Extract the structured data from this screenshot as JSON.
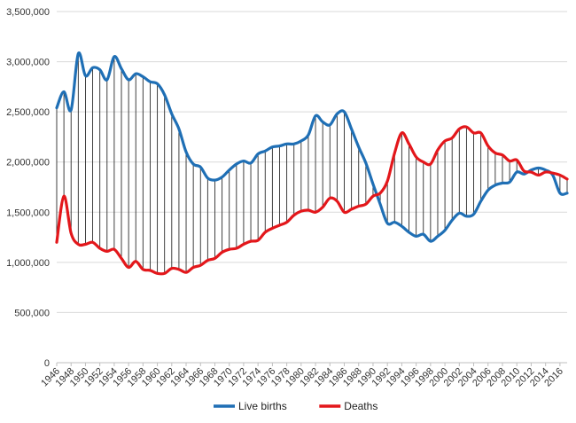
{
  "chart_data": {
    "type": "line",
    "title": "",
    "xlabel": "",
    "ylabel": "",
    "ylim": [
      0,
      3500000
    ],
    "y_ticks": [
      0,
      500000,
      1000000,
      1500000,
      2000000,
      2500000,
      3000000,
      3500000
    ],
    "y_tick_labels": [
      "0",
      "500,000",
      "1,000,000",
      "1,500,000",
      "2,000,000",
      "2,500,000",
      "3,000,000",
      "3,500,000"
    ],
    "x": [
      1946,
      1947,
      1948,
      1949,
      1950,
      1951,
      1952,
      1953,
      1954,
      1955,
      1956,
      1957,
      1958,
      1959,
      1960,
      1961,
      1962,
      1963,
      1964,
      1965,
      1966,
      1967,
      1968,
      1969,
      1970,
      1971,
      1972,
      1973,
      1974,
      1975,
      1976,
      1977,
      1978,
      1979,
      1980,
      1981,
      1982,
      1983,
      1984,
      1985,
      1986,
      1987,
      1988,
      1989,
      1990,
      1991,
      1992,
      1993,
      1994,
      1995,
      1996,
      1997,
      1998,
      1999,
      2000,
      2001,
      2002,
      2003,
      2004,
      2005,
      2006,
      2007,
      2008,
      2009,
      2010,
      2011,
      2012,
      2013,
      2014,
      2015,
      2016,
      2017
    ],
    "x_tick_labels": [
      "1946",
      "1948",
      "1950",
      "1952",
      "1954",
      "1956",
      "1958",
      "1960",
      "1962",
      "1964",
      "1966",
      "1968",
      "1970",
      "1972",
      "1974",
      "1976",
      "1978",
      "1980",
      "1982",
      "1984",
      "1986",
      "1988",
      "1990",
      "1992",
      "1994",
      "1996",
      "1998",
      "2000",
      "2002",
      "2004",
      "2006",
      "2008",
      "2010",
      "2012",
      "2014",
      "2016"
    ],
    "grid": "horizontal",
    "legend": "bottom",
    "series": [
      {
        "name": "Live births",
        "color": "#1f6fb5",
        "values": [
          2540000,
          2700000,
          2520000,
          3080000,
          2860000,
          2940000,
          2920000,
          2820000,
          3050000,
          2930000,
          2820000,
          2880000,
          2850000,
          2800000,
          2780000,
          2670000,
          2480000,
          2330000,
          2100000,
          1980000,
          1950000,
          1840000,
          1820000,
          1850000,
          1920000,
          1980000,
          2010000,
          1990000,
          2080000,
          2110000,
          2150000,
          2160000,
          2180000,
          2180000,
          2210000,
          2270000,
          2460000,
          2400000,
          2370000,
          2480000,
          2500000,
          2330000,
          2150000,
          1990000,
          1780000,
          1580000,
          1390000,
          1400000,
          1360000,
          1300000,
          1260000,
          1280000,
          1210000,
          1260000,
          1320000,
          1420000,
          1490000,
          1460000,
          1480000,
          1610000,
          1720000,
          1770000,
          1790000,
          1800000,
          1900000,
          1880000,
          1920000,
          1940000,
          1920000,
          1870000,
          1690000,
          1690000
        ]
      },
      {
        "name": "Deaths",
        "color": "#e3171b",
        "values": [
          1200000,
          1660000,
          1290000,
          1180000,
          1180000,
          1200000,
          1140000,
          1110000,
          1130000,
          1040000,
          950000,
          1010000,
          930000,
          920000,
          890000,
          890000,
          940000,
          930000,
          900000,
          950000,
          970000,
          1020000,
          1040000,
          1100000,
          1130000,
          1140000,
          1180000,
          1210000,
          1220000,
          1300000,
          1340000,
          1370000,
          1400000,
          1470000,
          1510000,
          1520000,
          1500000,
          1550000,
          1640000,
          1610000,
          1500000,
          1530000,
          1560000,
          1580000,
          1660000,
          1690000,
          1810000,
          2090000,
          2290000,
          2180000,
          2050000,
          2000000,
          1980000,
          2120000,
          2210000,
          2240000,
          2330000,
          2350000,
          2290000,
          2290000,
          2160000,
          2090000,
          2070000,
          2010000,
          2020000,
          1910000,
          1900000,
          1870000,
          1900000,
          1890000,
          1870000,
          1830000
        ]
      }
    ]
  }
}
